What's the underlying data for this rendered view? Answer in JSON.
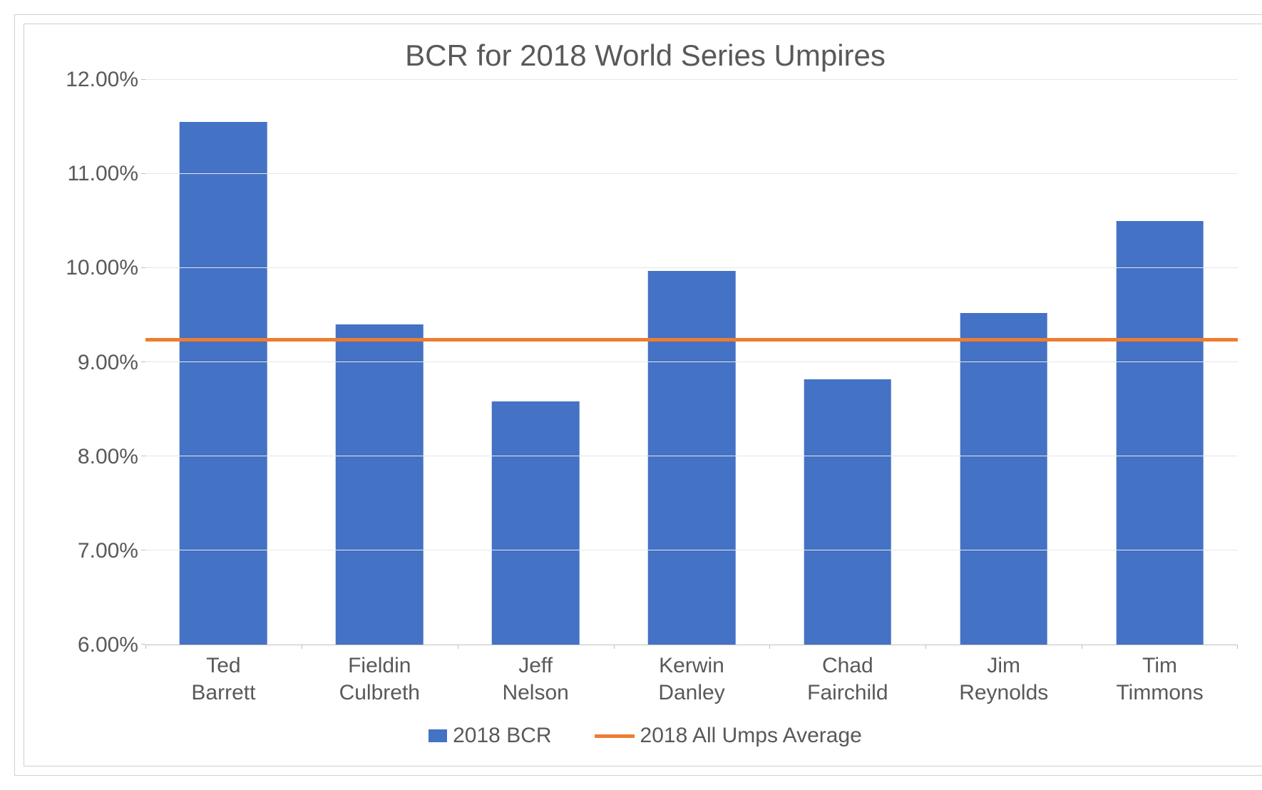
{
  "chart": {
    "type": "bar-with-line",
    "title": "BCR for 2018 World Series Umpires",
    "title_fontsize": 42,
    "title_color": "#595959",
    "axis_fontsize": 30,
    "axis_color": "#595959",
    "background_color": "#ffffff",
    "border_color": "#d0d0d0",
    "grid_color": "#e6e6e6",
    "axis_line_color": "#bfbfbf",
    "y_min": 6.0,
    "y_max": 12.0,
    "y_tick_step": 1.0,
    "y_ticks": [
      "6.00%",
      "7.00%",
      "8.00%",
      "9.00%",
      "10.00%",
      "11.00%",
      "12.00%"
    ],
    "categories": [
      "Ted Barrett",
      "Fieldin Culbreth",
      "Jeff Nelson",
      "Kerwin Danley",
      "Chad Fairchild",
      "Jim Reynolds",
      "Tim Timmons"
    ],
    "values": [
      11.55,
      9.4,
      8.58,
      9.97,
      8.82,
      9.52,
      10.5
    ],
    "bar_color": "#4472c4",
    "bar_width_pct": 56,
    "average_value": 9.22,
    "average_line_color": "#ed7d31",
    "average_line_width": 5,
    "legend": {
      "fontsize": 30,
      "bar_label": "2018 BCR",
      "line_label": "2018 All Umps Average"
    }
  }
}
